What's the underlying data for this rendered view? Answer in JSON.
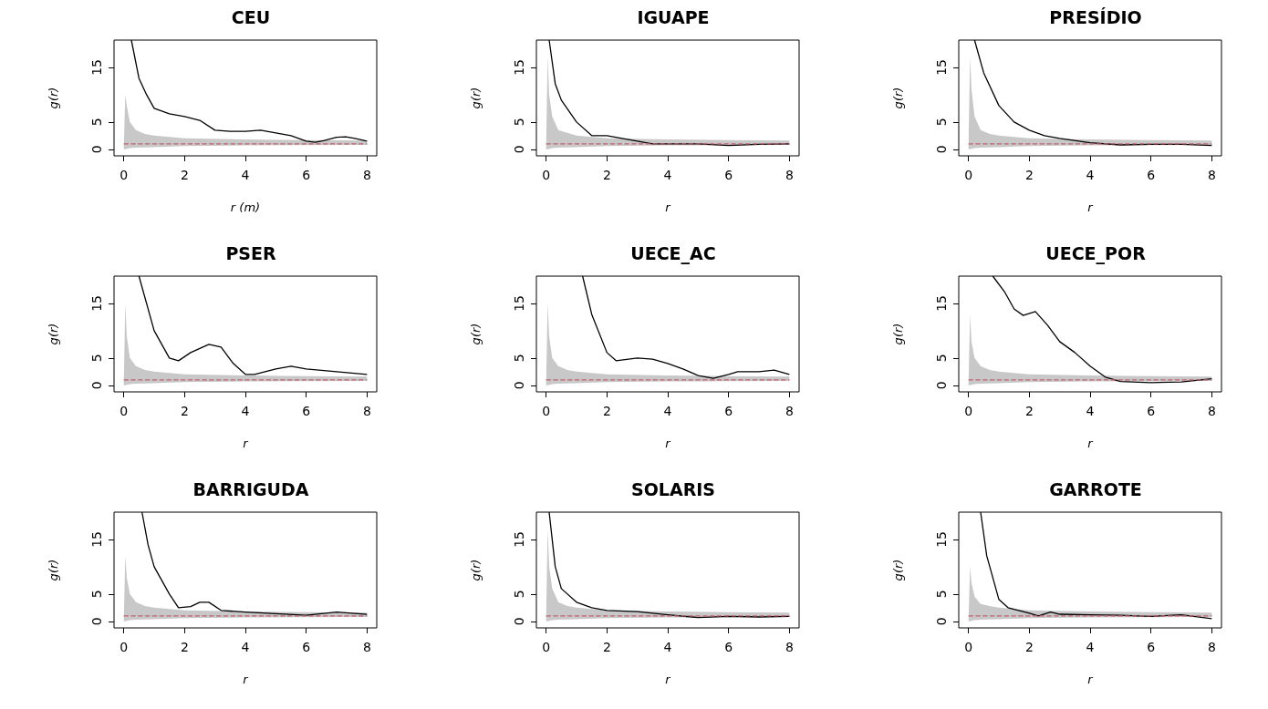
{
  "chart_data": [
    {
      "type": "line",
      "title": "CEU",
      "xlabel": "r (m)",
      "ylabel": "g(r)",
      "xlim": [
        -0.32,
        8.32
      ],
      "xticks": [
        0,
        2,
        4,
        6,
        8
      ],
      "ylim": [
        -1.2,
        20
      ],
      "yticks": [
        0,
        5,
        15
      ],
      "series": [
        {
          "color": "#000000",
          "x": [
            0.25,
            0.5,
            0.75,
            1,
            1.5,
            2,
            2.5,
            3,
            3.5,
            4,
            4.5,
            5,
            5.5,
            6,
            6.3,
            6.6,
            7,
            7.3,
            7.6,
            8
          ],
          "values": [
            20,
            13,
            10,
            7.5,
            6.5,
            6,
            5.3,
            3.5,
            3.3,
            3.3,
            3.5,
            3,
            2.5,
            1.5,
            1.3,
            1.6,
            2.2,
            2.3,
            2,
            1.5
          ]
        },
        {
          "color": "#c06070",
          "line_style": "dashed",
          "x": [
            0,
            0.05,
            0.1,
            0.2,
            0.4,
            0.7,
            1,
            2,
            4,
            6,
            8
          ],
          "values": [
            1,
            1,
            1,
            1,
            1,
            1,
            1,
            1,
            1,
            1,
            1
          ],
          "lower": [
            0,
            0,
            0.1,
            0.2,
            0.3,
            0.35,
            0.4,
            0.6,
            0.7,
            0.75,
            0.8
          ],
          "upper": [
            0,
            10,
            8,
            5,
            3.5,
            2.8,
            2.5,
            2,
            1.8,
            1.7,
            1.6
          ]
        }
      ]
    },
    {
      "type": "line",
      "title": "IGUAPE",
      "xlabel": "r",
      "ylabel": "g(r)",
      "xlim": [
        -0.32,
        8.32
      ],
      "xticks": [
        0,
        2,
        4,
        6,
        8
      ],
      "ylim": [
        -1.2,
        20
      ],
      "yticks": [
        0,
        5,
        15
      ],
      "series": [
        {
          "color": "#000000",
          "x": [
            0.1,
            0.3,
            0.5,
            1,
            1.5,
            2,
            2.5,
            3,
            3.5,
            4,
            5,
            6,
            7,
            8
          ],
          "values": [
            20,
            12,
            9,
            5,
            2.5,
            2.5,
            2,
            1.5,
            1,
            1,
            1,
            0.7,
            0.9,
            1
          ]
        },
        {
          "color": "#c06070",
          "line_style": "dashed",
          "x": [
            0,
            0.05,
            0.1,
            0.2,
            0.4,
            0.7,
            1,
            2,
            4,
            6,
            8
          ],
          "values": [
            1,
            1,
            1,
            1,
            1,
            1,
            1,
            1,
            1,
            1,
            1
          ],
          "lower": [
            0,
            0,
            0.1,
            0.2,
            0.3,
            0.35,
            0.4,
            0.6,
            0.7,
            0.75,
            0.8
          ],
          "upper": [
            0,
            17,
            10,
            6,
            3.5,
            3,
            2.5,
            2,
            1.8,
            1.7,
            1.6
          ]
        }
      ]
    },
    {
      "type": "line",
      "title": "PRESÍDIO",
      "xlabel": "r",
      "ylabel": "g(r)",
      "xlim": [
        -0.32,
        8.32
      ],
      "xticks": [
        0,
        2,
        4,
        6,
        8
      ],
      "ylim": [
        -1.2,
        20
      ],
      "yticks": [
        0,
        5,
        15
      ],
      "series": [
        {
          "color": "#000000",
          "x": [
            0.2,
            0.5,
            1,
            1.5,
            2,
            2.5,
            3,
            4,
            5,
            6,
            7,
            8
          ],
          "values": [
            20,
            14,
            8,
            5,
            3.5,
            2.5,
            2,
            1.2,
            0.8,
            0.9,
            0.9,
            0.7
          ]
        },
        {
          "color": "#c06070",
          "line_style": "dashed",
          "x": [
            0,
            0.05,
            0.1,
            0.2,
            0.4,
            0.7,
            1,
            2,
            4,
            6,
            8
          ],
          "values": [
            1,
            1,
            1,
            1,
            1,
            1,
            1,
            1,
            1,
            1,
            1
          ],
          "lower": [
            0,
            0,
            0.1,
            0.2,
            0.3,
            0.35,
            0.4,
            0.6,
            0.7,
            0.75,
            0.8
          ],
          "upper": [
            0,
            17,
            11,
            6,
            3.5,
            2.8,
            2.5,
            2,
            1.8,
            1.7,
            1.6
          ]
        }
      ]
    },
    {
      "type": "line",
      "title": "PSER",
      "xlabel": "r",
      "ylabel": "g(r)",
      "xlim": [
        -0.32,
        8.32
      ],
      "xticks": [
        0,
        2,
        4,
        6,
        8
      ],
      "ylim": [
        -1.2,
        20
      ],
      "yticks": [
        0,
        5,
        15
      ],
      "series": [
        {
          "color": "#000000",
          "x": [
            0.5,
            1,
            1.5,
            1.8,
            2.2,
            2.8,
            3.2,
            3.6,
            4,
            4.3,
            5,
            5.5,
            6,
            7,
            8
          ],
          "values": [
            20,
            10,
            5,
            4.5,
            6,
            7.5,
            7,
            4,
            2,
            2,
            3,
            3.5,
            3,
            2.5,
            2
          ]
        },
        {
          "color": "#c06070",
          "line_style": "dashed",
          "x": [
            0,
            0.05,
            0.1,
            0.2,
            0.4,
            0.7,
            1,
            2,
            4,
            6,
            8
          ],
          "values": [
            1,
            1,
            1,
            1,
            1,
            1,
            1,
            1,
            1,
            1,
            1
          ],
          "lower": [
            0,
            0,
            0.1,
            0.2,
            0.3,
            0.35,
            0.4,
            0.6,
            0.7,
            0.75,
            0.8
          ],
          "upper": [
            0,
            15,
            9,
            5,
            3.5,
            2.8,
            2.5,
            2,
            1.8,
            1.7,
            1.6
          ]
        }
      ]
    },
    {
      "type": "line",
      "title": "UECE_AC",
      "xlabel": "r",
      "ylabel": "g(r)",
      "xlim": [
        -0.32,
        8.32
      ],
      "xticks": [
        0,
        2,
        4,
        6,
        8
      ],
      "ylim": [
        -1.2,
        20
      ],
      "yticks": [
        0,
        5,
        15
      ],
      "series": [
        {
          "color": "#000000",
          "x": [
            1.2,
            1.5,
            2,
            2.3,
            3,
            3.5,
            4,
            4.5,
            5,
            5.5,
            6,
            6.3,
            7,
            7.5,
            8
          ],
          "values": [
            20,
            13,
            6,
            4.5,
            5,
            4.8,
            4,
            3,
            1.8,
            1.3,
            2,
            2.5,
            2.5,
            2.8,
            2
          ]
        },
        {
          "color": "#c06070",
          "line_style": "dashed",
          "x": [
            0,
            0.05,
            0.1,
            0.2,
            0.4,
            0.7,
            1,
            2,
            4,
            6,
            8
          ],
          "values": [
            1,
            1,
            1,
            1,
            1,
            1,
            1,
            1,
            1,
            1,
            1
          ],
          "lower": [
            0,
            0,
            0.1,
            0.2,
            0.3,
            0.35,
            0.4,
            0.6,
            0.7,
            0.75,
            0.8
          ],
          "upper": [
            0,
            15,
            9,
            5,
            3.5,
            2.8,
            2.5,
            2,
            1.8,
            1.7,
            1.6
          ]
        }
      ]
    },
    {
      "type": "line",
      "title": "UECE_POR",
      "xlabel": "r",
      "ylabel": "g(r)",
      "xlim": [
        -0.32,
        8.32
      ],
      "xticks": [
        0,
        2,
        4,
        6,
        8
      ],
      "ylim": [
        -1.2,
        20
      ],
      "yticks": [
        0,
        5,
        15
      ],
      "series": [
        {
          "color": "#000000",
          "x": [
            0.8,
            1.2,
            1.5,
            1.8,
            2.2,
            2.6,
            3,
            3.5,
            4,
            4.5,
            5,
            6,
            7,
            8
          ],
          "values": [
            20,
            17,
            14,
            12.8,
            13.5,
            11,
            8,
            6,
            3.5,
            1.5,
            0.7,
            0.5,
            0.6,
            1.2
          ]
        },
        {
          "color": "#c06070",
          "line_style": "dashed",
          "x": [
            0,
            0.05,
            0.1,
            0.2,
            0.4,
            0.7,
            1,
            2,
            4,
            6,
            8
          ],
          "values": [
            1,
            1,
            1,
            1,
            1,
            1,
            1,
            1,
            1,
            1,
            1
          ],
          "lower": [
            0,
            0,
            0.1,
            0.2,
            0.3,
            0.35,
            0.4,
            0.6,
            0.7,
            0.75,
            0.8
          ],
          "upper": [
            0,
            13,
            8,
            5,
            3.5,
            2.8,
            2.5,
            2,
            1.8,
            1.7,
            1.6
          ]
        }
      ]
    },
    {
      "type": "line",
      "title": "BARRIGUDA",
      "xlabel": "r",
      "ylabel": "g(r)",
      "xlim": [
        -0.32,
        8.32
      ],
      "xticks": [
        0,
        2,
        4,
        6,
        8
      ],
      "ylim": [
        -1.2,
        20
      ],
      "yticks": [
        0,
        5,
        15
      ],
      "series": [
        {
          "color": "#000000",
          "x": [
            0.6,
            0.8,
            1,
            1.5,
            1.8,
            2.2,
            2.5,
            2.8,
            3.2,
            4,
            5,
            6,
            7,
            7.5,
            8
          ],
          "values": [
            20,
            14,
            10,
            5,
            2.5,
            2.7,
            3.5,
            3.5,
            2,
            1.7,
            1.4,
            1.1,
            1.7,
            1.5,
            1.3
          ]
        },
        {
          "color": "#c06070",
          "line_style": "dashed",
          "x": [
            0,
            0.05,
            0.1,
            0.2,
            0.4,
            0.7,
            1,
            2,
            4,
            6,
            8
          ],
          "values": [
            1,
            1,
            1,
            1,
            1,
            1,
            1,
            1,
            1,
            1,
            1
          ],
          "lower": [
            0,
            0,
            0.1,
            0.2,
            0.3,
            0.35,
            0.4,
            0.6,
            0.7,
            0.75,
            0.8
          ],
          "upper": [
            0,
            12,
            8,
            5,
            3.5,
            2.8,
            2.5,
            2,
            1.8,
            1.7,
            1.6
          ]
        }
      ]
    },
    {
      "type": "line",
      "title": "SOLARIS",
      "xlabel": "r",
      "ylabel": "g(r)",
      "xlim": [
        -0.32,
        8.32
      ],
      "xticks": [
        0,
        2,
        4,
        6,
        8
      ],
      "ylim": [
        -1.2,
        20
      ],
      "yticks": [
        0,
        5,
        15
      ],
      "series": [
        {
          "color": "#000000",
          "x": [
            0.1,
            0.3,
            0.5,
            1,
            1.5,
            2,
            3,
            4,
            5,
            6,
            7,
            8
          ],
          "values": [
            20,
            10,
            6,
            3.5,
            2.5,
            2,
            1.8,
            1.2,
            0.7,
            0.9,
            0.8,
            0.9
          ]
        },
        {
          "color": "#c06070",
          "line_style": "dashed",
          "x": [
            0,
            0.05,
            0.1,
            0.2,
            0.4,
            0.7,
            1,
            2,
            4,
            6,
            8
          ],
          "values": [
            1,
            1,
            1,
            1,
            1,
            1,
            1,
            1,
            1,
            1,
            1
          ],
          "lower": [
            0,
            0,
            0.1,
            0.2,
            0.3,
            0.35,
            0.4,
            0.6,
            0.7,
            0.75,
            0.8
          ],
          "upper": [
            0,
            17,
            10,
            6,
            3.5,
            2.8,
            2.5,
            2,
            1.8,
            1.7,
            1.6
          ]
        }
      ]
    },
    {
      "type": "line",
      "title": "GARROTE",
      "xlabel": "r",
      "ylabel": "g(r)",
      "xlim": [
        -0.32,
        8.32
      ],
      "xticks": [
        0,
        2,
        4,
        6,
        8
      ],
      "ylim": [
        -1.2,
        20
      ],
      "yticks": [
        0,
        5,
        15
      ],
      "series": [
        {
          "color": "#000000",
          "x": [
            0.4,
            0.6,
            1,
            1.3,
            2,
            2.3,
            2.7,
            3,
            4,
            5,
            6,
            7,
            8
          ],
          "values": [
            20,
            12,
            4,
            2.5,
            1.5,
            1,
            1.7,
            1.3,
            1.2,
            1.1,
            0.9,
            1.2,
            0.5
          ]
        },
        {
          "color": "#c06070",
          "line_style": "dashed",
          "x": [
            0,
            0.05,
            0.1,
            0.2,
            0.4,
            0.7,
            1,
            2,
            4,
            6,
            8
          ],
          "values": [
            1,
            1,
            1,
            1,
            1,
            1,
            1,
            1,
            1,
            1,
            1
          ],
          "lower": [
            0,
            0,
            0.1,
            0.2,
            0.3,
            0.35,
            0.4,
            0.6,
            0.7,
            0.75,
            0.8
          ],
          "upper": [
            0,
            10,
            7,
            4.5,
            3.2,
            2.8,
            2.5,
            2,
            1.8,
            1.7,
            1.6
          ]
        }
      ]
    }
  ]
}
